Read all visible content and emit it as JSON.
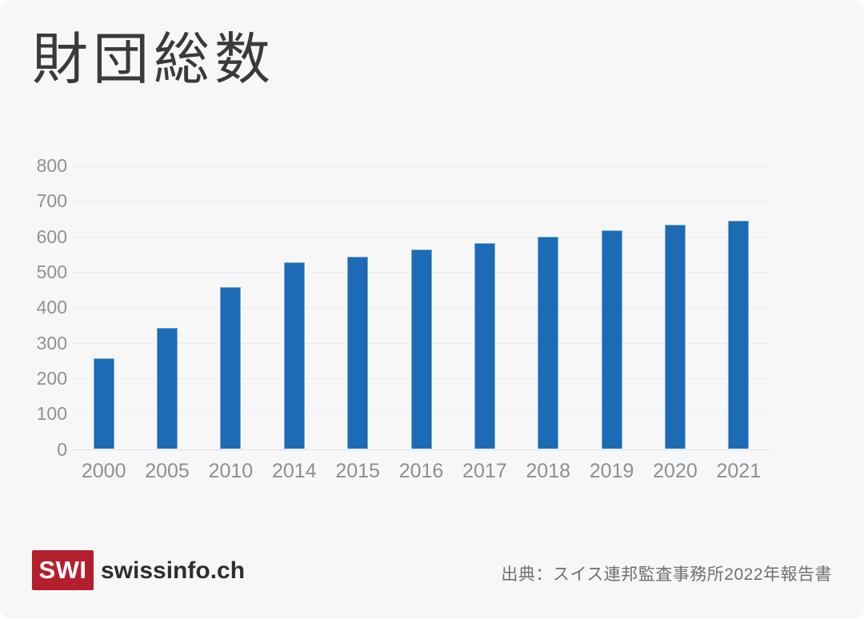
{
  "page": {
    "title": "財団総数"
  },
  "chart_data": {
    "type": "bar",
    "title": "財団総数",
    "categories": [
      "2000",
      "2005",
      "2010",
      "2014",
      "2015",
      "2016",
      "2017",
      "2018",
      "2019",
      "2020",
      "2021"
    ],
    "values": [
      257,
      342,
      457,
      526,
      542,
      562,
      581,
      599,
      617,
      632,
      645
    ],
    "xlabel": "",
    "ylabel": "",
    "ylim": [
      0,
      800
    ],
    "yticks": [
      0,
      100,
      200,
      300,
      400,
      500,
      600,
      700,
      800
    ],
    "grid": true,
    "legend": false,
    "bar_color": "#1c6bb4",
    "bar_edge_color": "#7aa7d2"
  },
  "footer": {
    "logo_text": "SWI",
    "brand": "swissinfo.ch",
    "source": "出典：スイス連邦監査事務所2022年報告書"
  },
  "colors": {
    "background": "#f7f7f8",
    "title_text": "#3a3a3a",
    "axis_text": "#909194",
    "gridline": "#ebeced",
    "logo_red": "#b41f2e",
    "brand_text": "#2e2f32",
    "source_text": "#707174"
  }
}
